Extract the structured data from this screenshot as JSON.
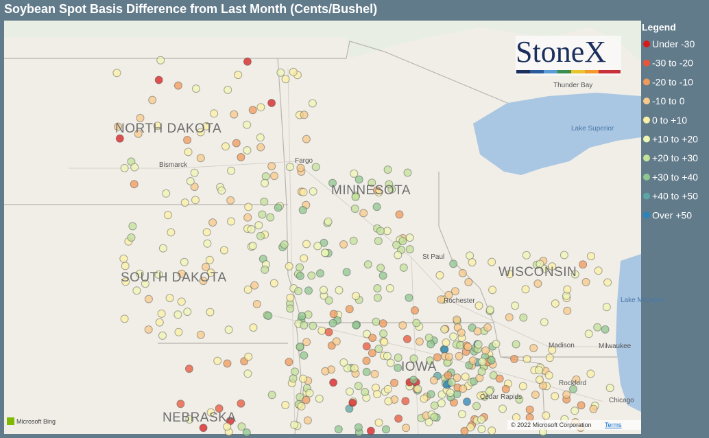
{
  "title": "Soybean Spot Basis Difference from Last Month (Cents/Bushel)",
  "legend": {
    "title": "Legend",
    "items": [
      {
        "label": "Under -30",
        "color": "#d7191c"
      },
      {
        "label": "-30 to -20",
        "color": "#e8553a"
      },
      {
        "label": "-20 to -10",
        "color": "#f09a5a"
      },
      {
        "label": "-10 to 0",
        "color": "#f8c98a"
      },
      {
        "label": "0 to +10",
        "color": "#fbf0a6"
      },
      {
        "label": "+10 to +20",
        "color": "#eef6b4"
      },
      {
        "label": "+20 to +30",
        "color": "#c3e29a"
      },
      {
        "label": "+30 to +40",
        "color": "#8fc78f"
      },
      {
        "label": "+40 to +50",
        "color": "#5aa6a4"
      },
      {
        "label": "Over +50",
        "color": "#2b83ba"
      }
    ]
  },
  "map": {
    "logo": "StoneX",
    "states": [
      "NORTH DAKOTA",
      "MINNESOTA",
      "SOUTH DAKOTA",
      "WISCONSIN",
      "NEBRASKA",
      "IOWA"
    ],
    "places": [
      "Thunder Bay",
      "Lake Superior",
      "Fargo",
      "Bismarck",
      "St Paul",
      "Rochester",
      "Madison",
      "Milwaukee",
      "Lake Michigan",
      "Rockford",
      "Cedar Rapids",
      "Chicago"
    ],
    "attribution": {
      "provider": "Microsoft Bing",
      "copyright": "© 2022 Microsoft Corporation",
      "terms": "Terms"
    }
  }
}
